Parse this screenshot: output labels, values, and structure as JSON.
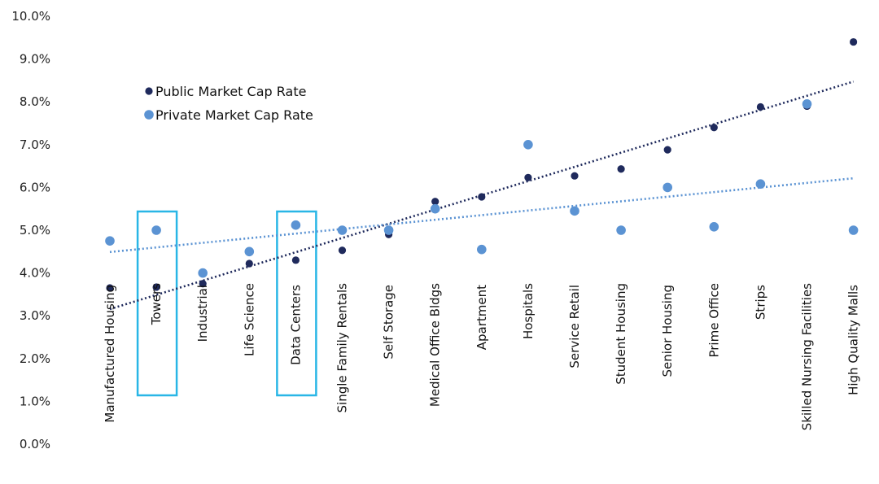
{
  "chart_data": {
    "type": "scatter",
    "title": "",
    "xlabel": "",
    "ylabel": "",
    "ylim": [
      0,
      10
    ],
    "y_ticks": [
      "0.0%",
      "1.0%",
      "2.0%",
      "3.0%",
      "4.0%",
      "5.0%",
      "6.0%",
      "7.0%",
      "8.0%",
      "9.0%",
      "10.0%"
    ],
    "grid": false,
    "legend_position": "upper-left",
    "categories": [
      "Manufactured Housing",
      "Towers",
      "Industrial",
      "Life Science",
      "Data Centers",
      "Single Family Rentals",
      "Self Storage",
      "Medical Office Bldgs",
      "Apartment",
      "Hospitals",
      "Service Retail",
      "Student Housing",
      "Senior Housing",
      "Prime Office",
      "Strips",
      "Skilled Nursing Facilities",
      "High Quality Malls"
    ],
    "series": [
      {
        "name": "Public Market Cap Rate",
        "color": "#1f2a5c",
        "values": [
          3.65,
          3.67,
          3.75,
          4.22,
          4.3,
          4.53,
          4.9,
          5.67,
          5.78,
          6.23,
          6.27,
          6.43,
          6.88,
          7.4,
          7.88,
          7.9,
          9.4
        ],
        "trendline": "linear-dotted"
      },
      {
        "name": "Private Market Cap Rate",
        "color": "#5b93d3",
        "values": [
          4.75,
          5.0,
          4.0,
          4.5,
          5.12,
          5.0,
          5.0,
          5.5,
          4.55,
          7.0,
          5.45,
          5.0,
          6.0,
          5.08,
          6.08,
          7.95,
          5.0
        ],
        "trendline": "linear-dotted"
      }
    ],
    "highlighted_categories": [
      "Towers",
      "Data Centers"
    ],
    "highlight_color": "#29b6e6"
  }
}
